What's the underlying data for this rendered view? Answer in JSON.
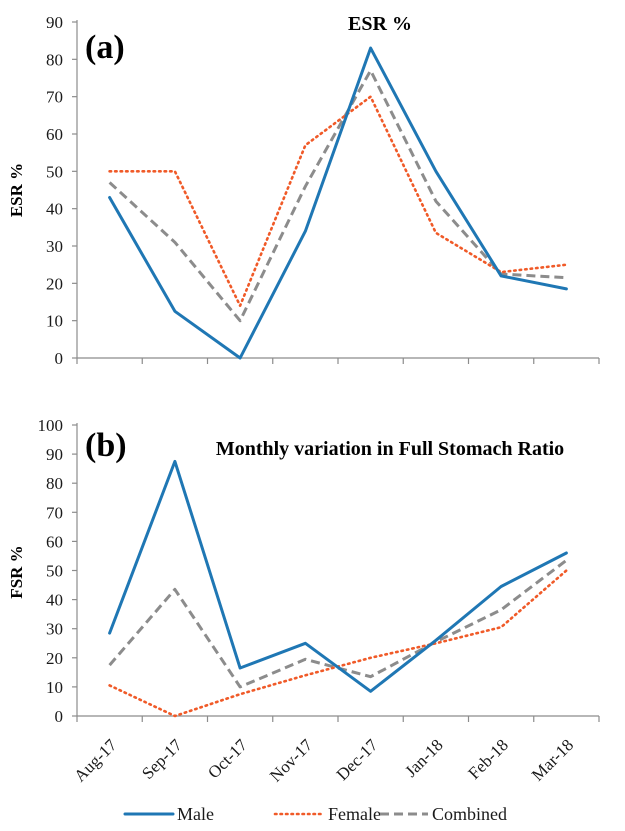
{
  "chart_data": [
    {
      "type": "line",
      "panel_label": "(a)",
      "title": "ESR %",
      "xlabel": "",
      "ylabel": "ESR %",
      "ylim": [
        0,
        90
      ],
      "yticks": [
        0,
        10,
        20,
        30,
        40,
        50,
        60,
        70,
        80,
        90
      ],
      "categories": [
        "Aug-17",
        "Sep-17",
        "Oct-17",
        "Nov-17",
        "Dec-17",
        "Jan-18",
        "Feb-18",
        "Mar-18"
      ],
      "series": [
        {
          "name": "Male",
          "values": [
            43,
            12.5,
            0,
            34,
            83,
            50,
            22,
            18.5
          ]
        },
        {
          "name": "Female",
          "values": [
            50,
            50,
            14,
            57,
            70,
            33.5,
            23,
            25
          ]
        },
        {
          "name": "Combined",
          "values": [
            47,
            31,
            10,
            46,
            77,
            42,
            22.5,
            21.5
          ]
        }
      ]
    },
    {
      "type": "line",
      "panel_label": "(b)",
      "title": "Monthly variation  in Full Stomach Ratio",
      "xlabel": "",
      "ylabel": "FSR %",
      "ylim": [
        0,
        100
      ],
      "yticks": [
        0,
        10,
        20,
        30,
        40,
        50,
        60,
        70,
        80,
        90,
        100
      ],
      "categories": [
        "Aug-17",
        "Sep-17",
        "Oct-17",
        "Nov-17",
        "Dec-17",
        "Jan-18",
        "Feb-18",
        "Mar-18"
      ],
      "series": [
        {
          "name": "Male",
          "values": [
            28.5,
            87.5,
            16.5,
            25,
            8.5,
            26,
            44.5,
            56
          ]
        },
        {
          "name": "Female",
          "values": [
            10.5,
            0,
            7.5,
            14,
            20,
            25,
            30.5,
            50
          ]
        },
        {
          "name": "Combined",
          "values": [
            17.5,
            43.5,
            10,
            19.5,
            13.5,
            25.5,
            36.5,
            53.5
          ]
        }
      ]
    }
  ],
  "legend": {
    "position": "bottom",
    "entries": [
      "Male",
      "Female",
      "Combined"
    ]
  },
  "colors": {
    "male": "#1f77b4",
    "female": "#f05a28",
    "combined": "#8c8c8c",
    "axis": "#8c8c8c"
  }
}
